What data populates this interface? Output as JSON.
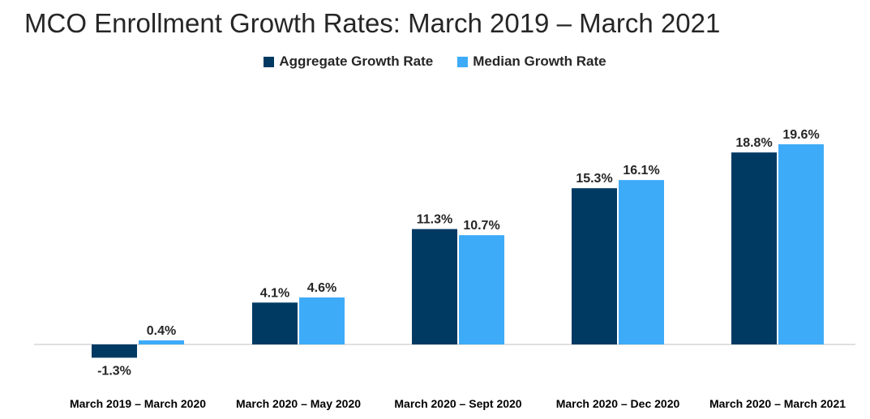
{
  "chart_data": {
    "type": "bar",
    "title": "MCO Enrollment Growth Rates: March 2019 – March 2021",
    "categories": [
      "March 2019 – March 2020",
      "March 2020 – May 2020",
      "March 2020 – Sept 2020",
      "March 2020 – Dec 2020",
      "March 2020 – March 2021"
    ],
    "series": [
      {
        "name": "Aggregate Growth Rate",
        "color": "#003a63",
        "values": [
          -1.3,
          4.1,
          11.3,
          15.3,
          18.8
        ],
        "labels": [
          "-1.3%",
          "4.1%",
          "11.3%",
          "15.3%",
          "18.8%"
        ]
      },
      {
        "name": "Median Growth Rate",
        "color": "#3eabf8",
        "values": [
          0.4,
          4.6,
          10.7,
          16.1,
          19.6
        ],
        "labels": [
          "0.4%",
          "4.6%",
          "10.7%",
          "16.1%",
          "19.6%"
        ]
      }
    ],
    "legend": "top",
    "grid": false
  }
}
